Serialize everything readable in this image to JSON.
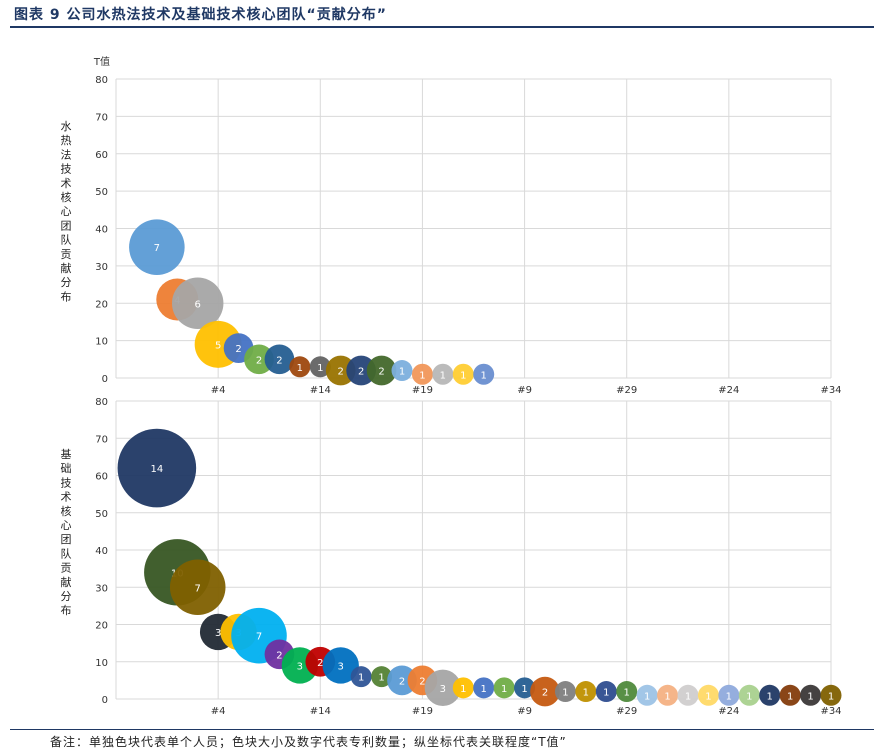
{
  "figure_title": "图表 9 公司水热法技术及基础技术核心团队“贡献分布”",
  "footnote": "备注：单独色块代表单个人员；色块大小及数字代表专利数量；纵坐标代表关联程度“T值”",
  "colors": {
    "title": "#1f3864",
    "grid": "#d9d9d9"
  },
  "chart_data": [
    {
      "type": "scatter",
      "subtype": "bubble",
      "ylabel": "水热法技术核心团队贡献分布",
      "yunit": "T值",
      "ylim": [
        0,
        80
      ],
      "yticks": [
        0,
        10,
        20,
        30,
        40,
        50,
        60,
        70,
        80
      ],
      "xlim": [
        0,
        35
      ],
      "xticks": [
        {
          "x": 5,
          "label": "#4"
        },
        {
          "x": 10,
          "label": "#14"
        },
        {
          "x": 15,
          "label": "#19"
        },
        {
          "x": 20,
          "label": "#9"
        },
        {
          "x": 25,
          "label": "#29"
        },
        {
          "x": 30,
          "label": "#24"
        },
        {
          "x": 35,
          "label": "#34"
        }
      ],
      "grid": true,
      "points": [
        {
          "x": 2,
          "y": 35,
          "size": 7,
          "color": "#5b9bd5"
        },
        {
          "x": 3,
          "y": 21,
          "size": 4,
          "color": "#ed7d31"
        },
        {
          "x": 4,
          "y": 20,
          "size": 6,
          "color": "#a5a5a5"
        },
        {
          "x": 5,
          "y": 9,
          "size": 5,
          "color": "#ffc000"
        },
        {
          "x": 6,
          "y": 8,
          "size": 2,
          "color": "#4472c4"
        },
        {
          "x": 7,
          "y": 5,
          "size": 2,
          "color": "#70ad47"
        },
        {
          "x": 8,
          "y": 5,
          "size": 2,
          "color": "#255e91"
        },
        {
          "x": 9,
          "y": 3,
          "size": 1,
          "color": "#9e480e"
        },
        {
          "x": 10,
          "y": 3,
          "size": 1,
          "color": "#636363"
        },
        {
          "x": 11,
          "y": 2,
          "size": 2,
          "color": "#997300"
        },
        {
          "x": 12,
          "y": 2,
          "size": 2,
          "color": "#264478"
        },
        {
          "x": 13,
          "y": 2,
          "size": 2,
          "color": "#43682b"
        },
        {
          "x": 14,
          "y": 2,
          "size": 1,
          "color": "#7cafdd"
        },
        {
          "x": 15,
          "y": 1,
          "size": 1,
          "color": "#f1975a"
        },
        {
          "x": 16,
          "y": 1,
          "size": 1,
          "color": "#b7b7b7"
        },
        {
          "x": 17,
          "y": 1,
          "size": 1,
          "color": "#ffcd33"
        },
        {
          "x": 18,
          "y": 1,
          "size": 1,
          "color": "#698ed0"
        }
      ]
    },
    {
      "type": "scatter",
      "subtype": "bubble",
      "ylabel": "基础技术核心团队贡献分布",
      "ylim": [
        0,
        80
      ],
      "yticks": [
        0,
        10,
        20,
        30,
        40,
        50,
        60,
        70,
        80
      ],
      "xlim": [
        0,
        35
      ],
      "xticks": [
        {
          "x": 5,
          "label": "#4"
        },
        {
          "x": 10,
          "label": "#14"
        },
        {
          "x": 15,
          "label": "#19"
        },
        {
          "x": 20,
          "label": "#9"
        },
        {
          "x": 25,
          "label": "#29"
        },
        {
          "x": 30,
          "label": "#24"
        },
        {
          "x": 35,
          "label": "#34"
        }
      ],
      "grid": true,
      "points": [
        {
          "x": 2,
          "y": 62,
          "size": 14,
          "color": "#203864"
        },
        {
          "x": 3,
          "y": 34,
          "size": 10,
          "color": "#375623"
        },
        {
          "x": 4,
          "y": 30,
          "size": 7,
          "color": "#7f6000"
        },
        {
          "x": 5,
          "y": 18,
          "size": 3,
          "color": "#222a35"
        },
        {
          "x": 6,
          "y": 18,
          "size": 3,
          "color": "#ffc000"
        },
        {
          "x": 7,
          "y": 17,
          "size": 7,
          "color": "#00b0f0"
        },
        {
          "x": 8,
          "y": 12,
          "size": 2,
          "color": "#7030a0"
        },
        {
          "x": 9,
          "y": 9,
          "size": 3,
          "color": "#00b050"
        },
        {
          "x": 10,
          "y": 10,
          "size": 2,
          "color": "#c00000"
        },
        {
          "x": 11,
          "y": 9,
          "size": 3,
          "color": "#0070c0"
        },
        {
          "x": 12,
          "y": 6,
          "size": 1,
          "color": "#2f5597"
        },
        {
          "x": 13,
          "y": 6,
          "size": 1,
          "color": "#548235"
        },
        {
          "x": 14,
          "y": 5,
          "size": 2,
          "color": "#5b9bd5"
        },
        {
          "x": 15,
          "y": 5,
          "size": 2,
          "color": "#ed7d31"
        },
        {
          "x": 16,
          "y": 3,
          "size": 3,
          "color": "#a5a5a5"
        },
        {
          "x": 17,
          "y": 3,
          "size": 1,
          "color": "#ffc000"
        },
        {
          "x": 18,
          "y": 3,
          "size": 1,
          "color": "#4472c4"
        },
        {
          "x": 19,
          "y": 3,
          "size": 1,
          "color": "#70ad47"
        },
        {
          "x": 20,
          "y": 3,
          "size": 1,
          "color": "#255e91"
        },
        {
          "x": 21,
          "y": 2,
          "size": 2,
          "color": "#c55a11"
        },
        {
          "x": 22,
          "y": 2,
          "size": 1,
          "color": "#7f7f7f"
        },
        {
          "x": 23,
          "y": 2,
          "size": 1,
          "color": "#bf9000"
        },
        {
          "x": 24,
          "y": 2,
          "size": 1,
          "color": "#2e4d8f"
        },
        {
          "x": 25,
          "y": 2,
          "size": 1,
          "color": "#4f8a3c"
        },
        {
          "x": 26,
          "y": 1,
          "size": 1,
          "color": "#9dc3e6"
        },
        {
          "x": 27,
          "y": 1,
          "size": 1,
          "color": "#f4b183"
        },
        {
          "x": 28,
          "y": 1,
          "size": 1,
          "color": "#d0cece"
        },
        {
          "x": 29,
          "y": 1,
          "size": 1,
          "color": "#ffd966"
        },
        {
          "x": 30,
          "y": 1,
          "size": 1,
          "color": "#8faadc"
        },
        {
          "x": 31,
          "y": 1,
          "size": 1,
          "color": "#a9d18e"
        },
        {
          "x": 32,
          "y": 1,
          "size": 1,
          "color": "#203864"
        },
        {
          "x": 33,
          "y": 1,
          "size": 1,
          "color": "#843c0c"
        },
        {
          "x": 34,
          "y": 1,
          "size": 1,
          "color": "#3b3838"
        },
        {
          "x": 35,
          "y": 1,
          "size": 1,
          "color": "#7f6000"
        }
      ]
    }
  ]
}
